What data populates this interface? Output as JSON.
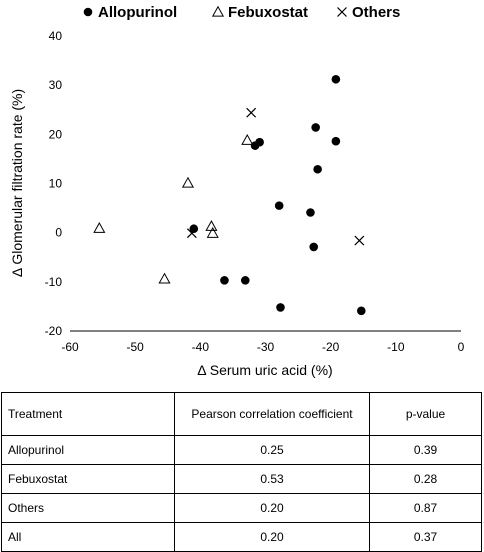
{
  "chart_data": {
    "type": "scatter",
    "xlabel": "Δ Serum uric acid (%)",
    "ylabel": "Δ Glomerular filtration rate (%)",
    "xlim": [
      -60,
      0
    ],
    "ylim": [
      -20,
      40
    ],
    "xticks": [
      -60,
      -50,
      -40,
      -30,
      -20,
      -10,
      0
    ],
    "yticks": [
      -20,
      -10,
      0,
      10,
      20,
      30,
      40
    ],
    "grid": false,
    "legend_position": "top",
    "series": [
      {
        "name": "Allopurinol",
        "marker": "filled-circle",
        "points": [
          {
            "x": -41.0,
            "y": 0.8
          },
          {
            "x": -36.3,
            "y": -9.7
          },
          {
            "x": -33.1,
            "y": -9.7
          },
          {
            "x": -31.6,
            "y": 17.7
          },
          {
            "x": -30.9,
            "y": 18.4
          },
          {
            "x": -27.9,
            "y": 5.5
          },
          {
            "x": -27.7,
            "y": -15.2
          },
          {
            "x": -23.1,
            "y": 4.1
          },
          {
            "x": -22.6,
            "y": -2.9
          },
          {
            "x": -22.3,
            "y": 21.4
          },
          {
            "x": -22.0,
            "y": 12.9
          },
          {
            "x": -19.2,
            "y": 31.2
          },
          {
            "x": -19.2,
            "y": 18.6
          },
          {
            "x": -15.3,
            "y": -15.9
          }
        ]
      },
      {
        "name": "Febuxostat",
        "marker": "open-triangle",
        "points": [
          {
            "x": -55.5,
            "y": 0.9
          },
          {
            "x": -45.5,
            "y": -9.4
          },
          {
            "x": -41.9,
            "y": 10.1
          },
          {
            "x": -38.3,
            "y": 1.3
          },
          {
            "x": -38.1,
            "y": -0.1
          },
          {
            "x": -32.8,
            "y": 18.8
          }
        ]
      },
      {
        "name": "Others",
        "marker": "x-cross",
        "points": [
          {
            "x": -41.3,
            "y": -0.1
          },
          {
            "x": -32.2,
            "y": 24.4
          },
          {
            "x": -15.6,
            "y": -1.6
          }
        ]
      }
    ]
  },
  "table": {
    "header": [
      "Treatment",
      "Pearson correlation coefficient",
      "p-value"
    ],
    "rows": [
      [
        "Allopurinol",
        "0.25",
        "0.39"
      ],
      [
        "Febuxostat",
        "0.53",
        "0.28"
      ],
      [
        "Others",
        "0.20",
        "0.87"
      ],
      [
        "All",
        "0.20",
        "0.37"
      ]
    ]
  }
}
